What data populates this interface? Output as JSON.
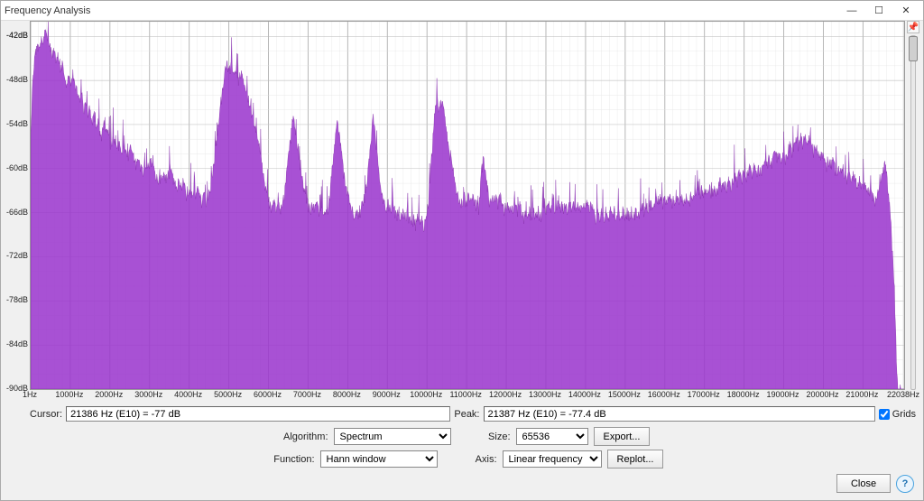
{
  "window": {
    "title": "Frequency Analysis",
    "minimize_tip": "Minimize",
    "maximize_tip": "Maximize",
    "close_tip": "Close"
  },
  "spectrum_chart": {
    "type": "area",
    "x_unit": "Hz",
    "y_unit": "dB",
    "y_min": -90,
    "y_max": -40,
    "y_tick_step": 6,
    "y_extra_tick": -42,
    "x_min": 1,
    "x_max": 22038,
    "x_ticks": [
      1,
      1000,
      2000,
      3000,
      4000,
      5000,
      6000,
      7000,
      8000,
      9000,
      10000,
      11000,
      12000,
      13000,
      14000,
      15000,
      16000,
      17000,
      18000,
      19000,
      20000,
      21000,
      22038
    ],
    "x_tick_labels": [
      "1Hz",
      "1000Hz",
      "2000Hz",
      "3000Hz",
      "4000Hz",
      "5000Hz",
      "6000Hz",
      "7000Hz",
      "8000Hz",
      "9000Hz",
      "10000Hz",
      "11000Hz",
      "12000Hz",
      "13000Hz",
      "14000Hz",
      "15000Hz",
      "16000Hz",
      "17000Hz",
      "18000Hz",
      "19000Hz",
      "20000Hz",
      "21000Hz",
      "22038Hz"
    ],
    "background_color": "#ffffff",
    "grid_major_color": "#b5b5b5",
    "grid_minor_color": "#e2e2e2",
    "fill_color": "#9933cc",
    "fill_opacity": 0.85,
    "stroke_color": "#7a1fa2",
    "stroke_width": 0.5,
    "slider_value": 0.0,
    "envelope_db": [
      -55,
      -47,
      -44,
      -42.5,
      -43,
      -41.5,
      -42,
      -41,
      -41.5,
      -42.5,
      -44,
      -43,
      -45,
      -44,
      -46,
      -45,
      -47,
      -48,
      -47,
      -48,
      -46,
      -48,
      -49,
      -50,
      -49,
      -51,
      -50,
      -52,
      -51,
      -53,
      -52,
      -54,
      -53,
      -55,
      -54,
      -53,
      -54,
      -55,
      -56,
      -55,
      -56,
      -57,
      -56,
      -58,
      -56,
      -57,
      -58,
      -56,
      -57,
      -58,
      -59,
      -58,
      -59,
      -60,
      -59,
      -60,
      -59,
      -58,
      -59,
      -60,
      -61,
      -60,
      -61,
      -60,
      -61,
      -60,
      -59,
      -60,
      -61,
      -62,
      -61,
      -62,
      -61,
      -62,
      -63,
      -62,
      -63,
      -62,
      -63,
      -62,
      -63,
      -64,
      -63,
      -64,
      -63,
      -62,
      -60,
      -58,
      -55,
      -53,
      -50,
      -48,
      -46,
      -45,
      -46,
      -45,
      -47,
      -46,
      -48,
      -46,
      -47,
      -48,
      -49,
      -50,
      -51,
      -52,
      -54,
      -55,
      -56,
      -58,
      -60,
      -62,
      -63,
      -64,
      -65,
      -64,
      -65,
      -64,
      -65,
      -64,
      -63,
      -60,
      -57,
      -55,
      -52,
      -54,
      -56,
      -58,
      -60,
      -62,
      -63,
      -64,
      -65,
      -64,
      -65,
      -64,
      -65,
      -66,
      -65,
      -66,
      -65,
      -64,
      -61,
      -58,
      -55,
      -53,
      -55,
      -57,
      -60,
      -62,
      -63,
      -64,
      -65,
      -66,
      -65,
      -66,
      -65,
      -64,
      -63,
      -61,
      -58,
      -55,
      -52,
      -55,
      -58,
      -61,
      -63,
      -64,
      -65,
      -64,
      -65,
      -64,
      -65,
      -66,
      -65,
      -66,
      -65,
      -66,
      -65,
      -66,
      -67,
      -66,
      -67,
      -66,
      -67,
      -66,
      -67,
      -66,
      -64,
      -60,
      -56,
      -52,
      -50,
      -52,
      -50,
      -51,
      -53,
      -55,
      -57,
      -58,
      -60,
      -62,
      -63,
      -64,
      -64,
      -63,
      -64,
      -63,
      -64,
      -63,
      -64,
      -64,
      -65,
      -60,
      -58,
      -60,
      -62,
      -64,
      -63,
      -64,
      -63,
      -64,
      -63,
      -64,
      -65,
      -64,
      -65,
      -64,
      -65,
      -64,
      -65,
      -64,
      -65,
      -66,
      -65,
      -66,
      -65,
      -66,
      -65,
      -66,
      -65,
      -66,
      -65,
      -64,
      -65,
      -64,
      -65,
      -64,
      -65,
      -64,
      -65,
      -64,
      -65,
      -64,
      -65,
      -64,
      -65,
      -64,
      -65,
      -64,
      -65,
      -64,
      -65,
      -64,
      -65,
      -64,
      -65,
      -66,
      -65,
      -66,
      -65,
      -66,
      -65,
      -66,
      -65,
      -66,
      -65,
      -66,
      -65,
      -66,
      -65,
      -66,
      -65,
      -66,
      -65,
      -66,
      -65,
      -66,
      -65,
      -64,
      -65,
      -64,
      -65,
      -64,
      -65,
      -64,
      -63,
      -64,
      -63,
      -64,
      -63,
      -64,
      -63,
      -64,
      -63,
      -64,
      -63,
      -64,
      -63,
      -64,
      -63,
      -64,
      -63,
      -64,
      -63,
      -62,
      -63,
      -62,
      -63,
      -62,
      -63,
      -62,
      -63,
      -62,
      -63,
      -62,
      -61,
      -62,
      -61,
      -62,
      -61,
      -62,
      -61,
      -60,
      -61,
      -60,
      -61,
      -60,
      -61,
      -60,
      -59,
      -60,
      -59,
      -60,
      -59,
      -60,
      -59,
      -58,
      -59,
      -58,
      -59,
      -58,
      -57,
      -58,
      -57,
      -58,
      -57,
      -58,
      -57,
      -56,
      -57,
      -56,
      -55,
      -56,
      -55,
      -56,
      -55,
      -56,
      -55,
      -56,
      -57,
      -56,
      -57,
      -58,
      -57,
      -58,
      -59,
      -58,
      -59,
      -58,
      -59,
      -60,
      -59,
      -60,
      -59,
      -60,
      -61,
      -60,
      -61,
      -60,
      -61,
      -62,
      -61,
      -62,
      -61,
      -62,
      -63,
      -62,
      -63,
      -64,
      -63,
      -62,
      -61,
      -60,
      -58,
      -61,
      -64,
      -68,
      -74,
      -82,
      -90,
      -90,
      -90,
      -90
    ]
  },
  "cursor": {
    "label": "Cursor:",
    "value": "21386 Hz (E10) = -77 dB"
  },
  "peak": {
    "label": "Peak:",
    "value": "21387 Hz (E10) = -77.4 dB"
  },
  "grids_checkbox": {
    "label": "Grids",
    "checked": true
  },
  "controls": {
    "algorithm": {
      "label": "Algorithm:",
      "value": "Spectrum"
    },
    "function": {
      "label": "Function:",
      "value": "Hann window"
    },
    "size": {
      "label": "Size:",
      "value": "65536"
    },
    "axis": {
      "label": "Axis:",
      "value": "Linear frequency"
    },
    "export_label": "Export...",
    "replot_label": "Replot..."
  },
  "buttons": {
    "close": "Close",
    "help_tip": "Help"
  }
}
